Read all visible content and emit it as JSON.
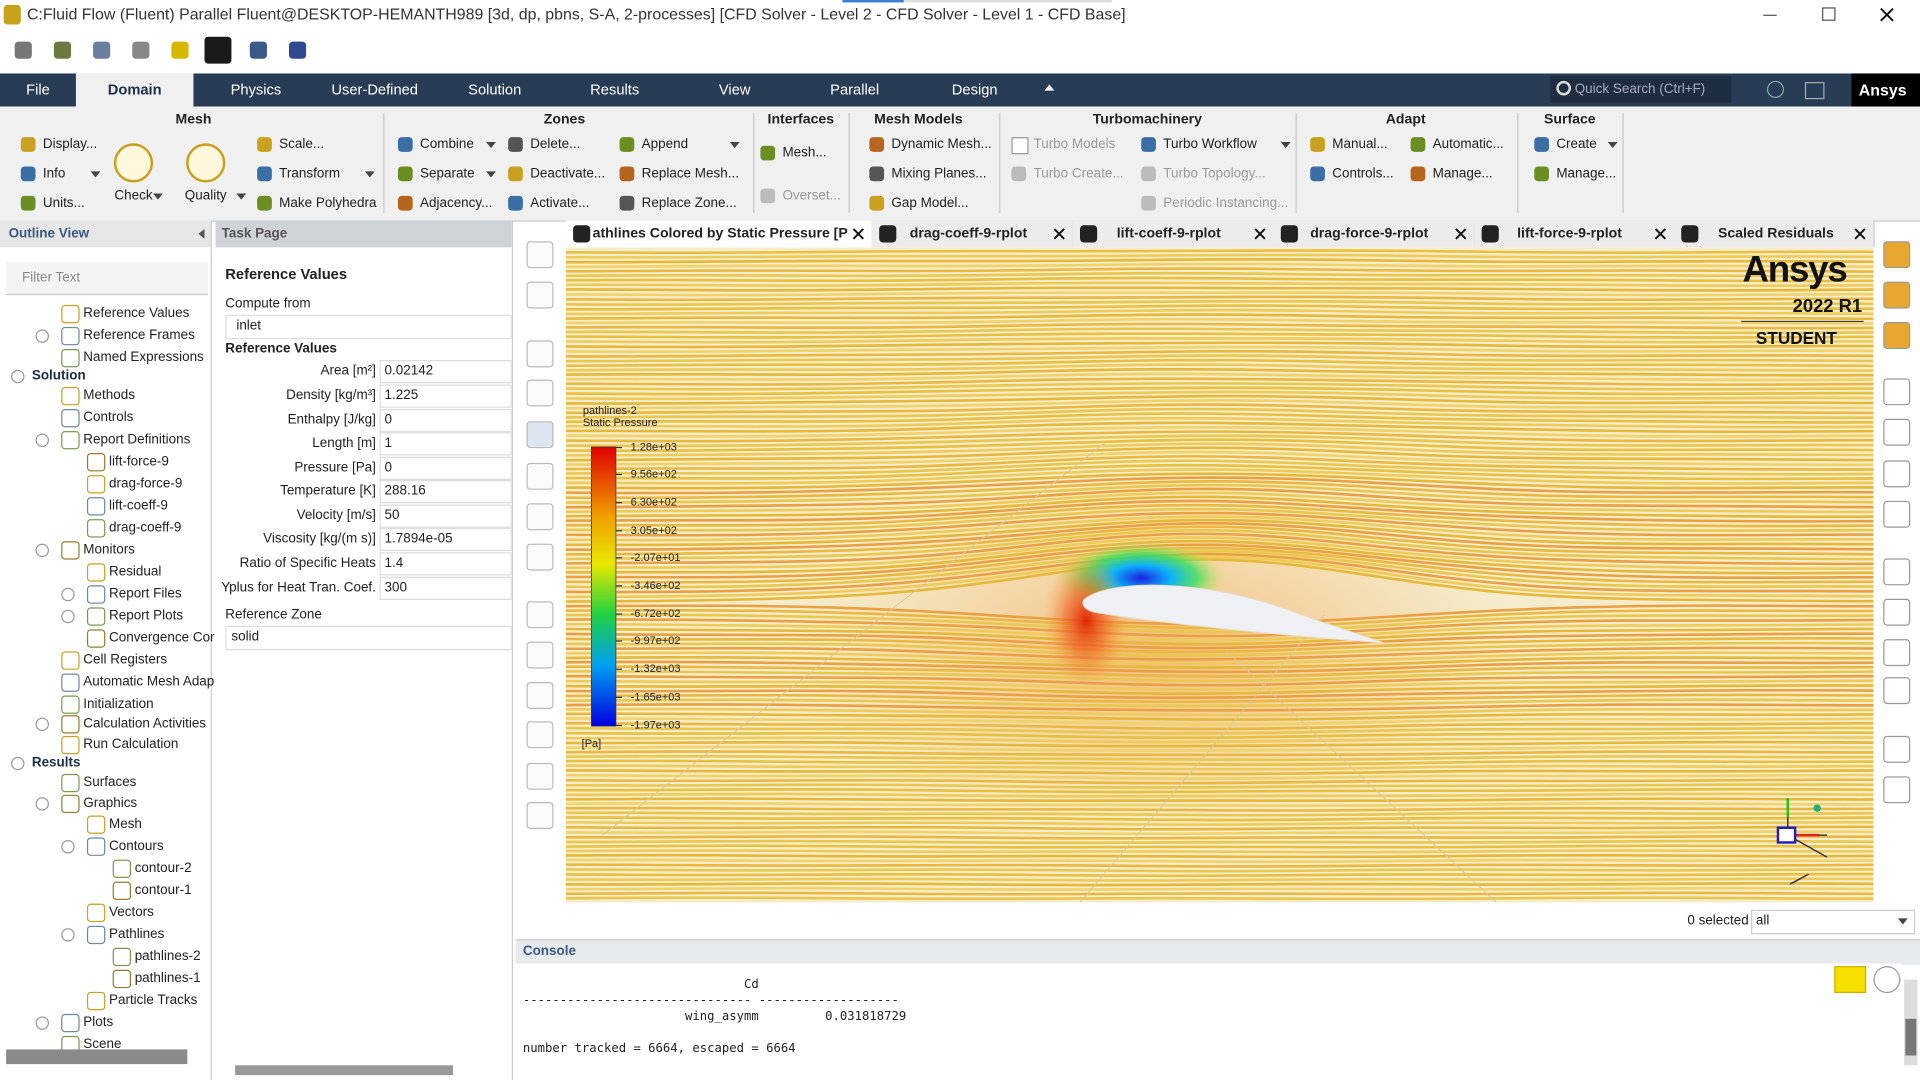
{
  "window": {
    "title": "C:Fluid Flow (Fluent) Parallel Fluent@DESKTOP-HEMANTH989  [3d, dp, pbns, S-A, 2-processes] [CFD Solver - Level 2 - CFD Solver - Level 1 - CFD Base]"
  },
  "ribbon": {
    "tabs": [
      "File",
      "Domain",
      "Physics",
      "User-Defined",
      "Solution",
      "Results",
      "View",
      "Parallel",
      "Design"
    ],
    "search_placeholder": "Quick Search (Ctrl+F)",
    "brand": "Ansys",
    "groups": [
      {
        "title": "Mesh",
        "items": [
          "Display...",
          "Info",
          "Units...",
          "Check",
          "Quality",
          "Scale...",
          "Transform",
          "Make Polyhedra"
        ]
      },
      {
        "title": "Zones",
        "items": [
          "Combine",
          "Separate",
          "Adjacency...",
          "Delete...",
          "Deactivate...",
          "Activate...",
          "Append",
          "Replace Mesh...",
          "Replace Zone..."
        ]
      },
      {
        "title": "Interfaces",
        "items": [
          "Mesh...",
          "Overset..."
        ]
      },
      {
        "title": "Mesh Models",
        "items": [
          "Dynamic Mesh...",
          "Mixing Planes...",
          "Gap Model..."
        ]
      },
      {
        "title": "Turbomachinery",
        "items": [
          "Turbo Models",
          "Turbo Create...",
          "Turbo Workflow",
          "Turbo Topology...",
          "Periodic Instancing..."
        ]
      },
      {
        "title": "Adapt",
        "items": [
          "Manual...",
          "Controls...",
          "Automatic...",
          "Manage..."
        ]
      },
      {
        "title": "Surface",
        "items": [
          "Create",
          "Manage..."
        ]
      }
    ]
  },
  "outline": {
    "title": "Outline View",
    "filter_placeholder": "Filter Text",
    "items": [
      "Reference Values",
      "Reference Frames",
      "Named Expressions",
      "Solution",
      "Methods",
      "Controls",
      "Report Definitions",
      "lift-force-9",
      "drag-force-9",
      "lift-coeff-9",
      "drag-coeff-9",
      "Monitors",
      "Residual",
      "Report Files",
      "Report Plots",
      "Convergence Cor",
      "Cell Registers",
      "Automatic Mesh Adap",
      "Initialization",
      "Calculation Activities",
      "Run Calculation",
      "Results",
      "Surfaces",
      "Graphics",
      "Mesh",
      "Contours",
      "contour-2",
      "contour-1",
      "Vectors",
      "Pathlines",
      "pathlines-2",
      "pathlines-1",
      "Particle Tracks",
      "Plots",
      "Scene"
    ]
  },
  "task_page": {
    "title": "Task Page",
    "heading": "Reference Values",
    "compute_from_label": "Compute from",
    "compute_from": "inlet",
    "values_heading": "Reference Values",
    "fields": [
      {
        "label": "Area [m²]",
        "value": "0.02142"
      },
      {
        "label": "Density [kg/m³]",
        "value": "1.225"
      },
      {
        "label": "Enthalpy [J/kg]",
        "value": "0"
      },
      {
        "label": "Length [m]",
        "value": "1"
      },
      {
        "label": "Pressure [Pa]",
        "value": "0"
      },
      {
        "label": "Temperature [K]",
        "value": "288.16"
      },
      {
        "label": "Velocity [m/s]",
        "value": "50"
      },
      {
        "label": "Viscosity [kg/(m s)]",
        "value": "1.7894e-05"
      },
      {
        "label": "Ratio of Specific Heats",
        "value": "1.4"
      },
      {
        "label": "Yplus for Heat Tran. Coef.",
        "value": "300"
      }
    ],
    "zone_label": "Reference Zone",
    "zone": "solid"
  },
  "graphics": {
    "tabs": [
      "athlines Colored by Static Pressure [P",
      "drag-coeff-9-rplot",
      "lift-coeff-9-rplot",
      "drag-force-9-rplot",
      "lift-force-9-rplot",
      "Scaled Residuals"
    ],
    "watermark": {
      "brand": "Ansys",
      "release": "2022 R1",
      "edition": "STUDENT"
    },
    "legend": {
      "title": "pathlines-2",
      "quantity": "Static Pressure",
      "labels": [
        "1.28e+03",
        "9.56e+02",
        "6.30e+02",
        "3.05e+02",
        "-2.07e+01",
        "-3.46e+02",
        "-6.72e+02",
        "-9.97e+02",
        "-1.32e+03",
        "-1.65e+03",
        "-1.97e+03"
      ],
      "unit": "[Pa]"
    },
    "selection": {
      "count": "0 selected",
      "filter": "all"
    }
  },
  "console": {
    "title": "Console",
    "lines": [
      "                              Cd",
      "------------------------------- -------------------",
      "                      wing_asymm         0.031818729",
      "",
      "number tracked = 6664, escaped = 6664"
    ]
  }
}
